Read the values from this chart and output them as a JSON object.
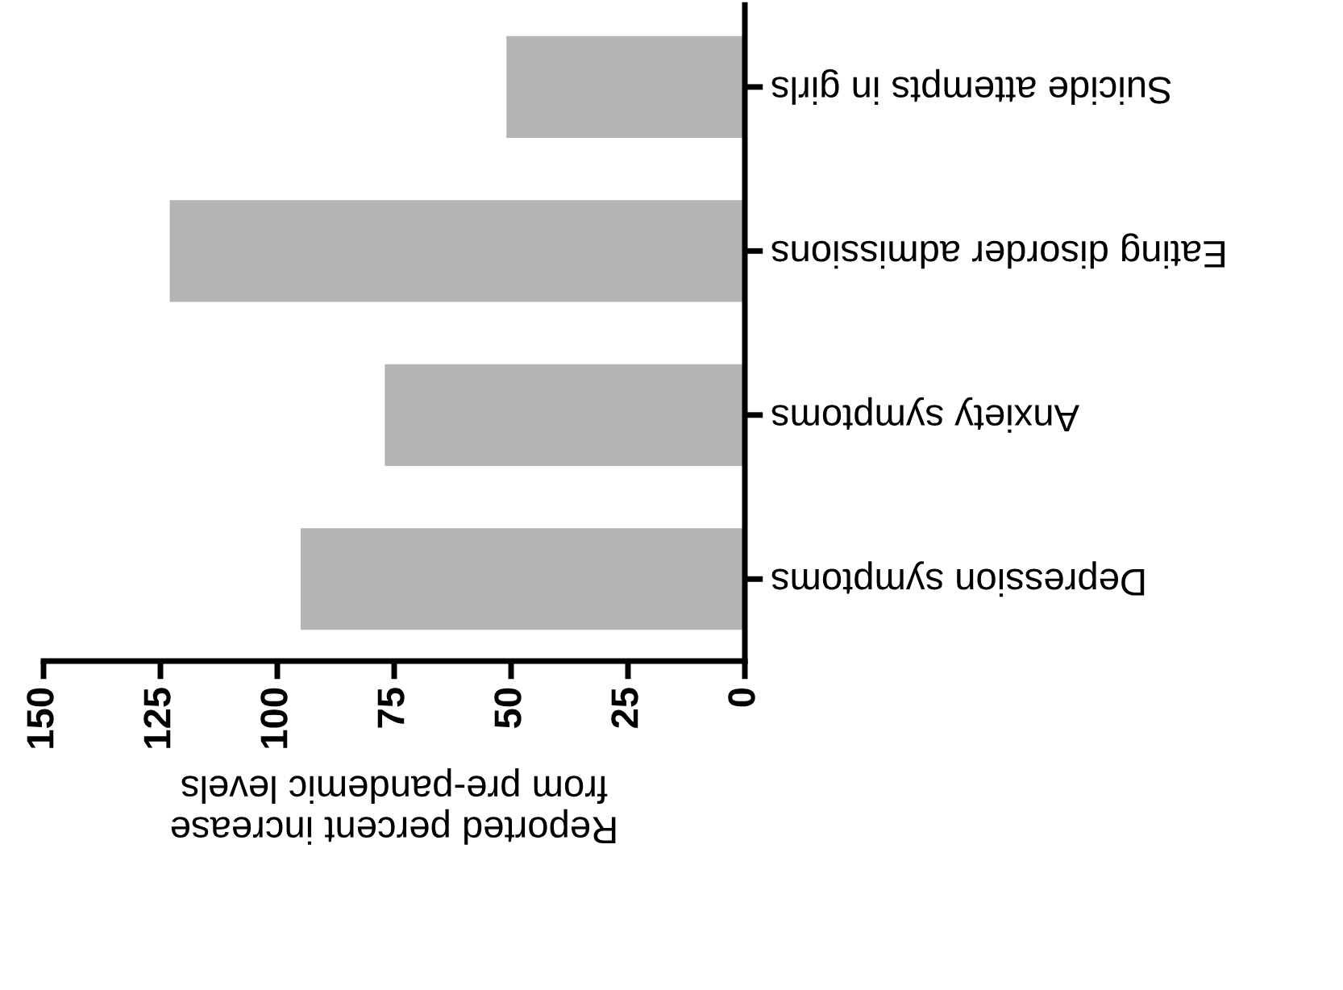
{
  "chart_data": {
    "type": "bar",
    "orientation": "horizontal",
    "categories": [
      "Suicide attempts in girls",
      "Eating disorder admissions",
      "Anxiety symptoms",
      "Depression symptoms"
    ],
    "values": [
      51,
      123,
      77,
      95
    ],
    "color": "#b4b4b4",
    "xlabel": "Reported percent increase\nfrom pre-pandemic levels",
    "xlim": [
      150,
      0
    ],
    "xticks": [
      150,
      125,
      100,
      75,
      50,
      25,
      0
    ],
    "grid": false
  }
}
